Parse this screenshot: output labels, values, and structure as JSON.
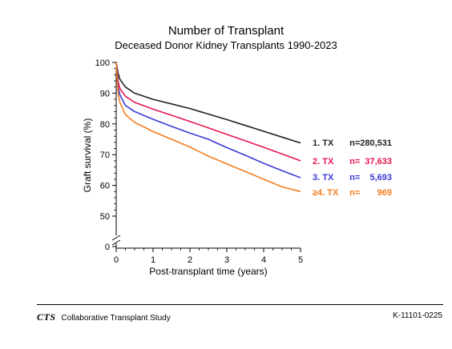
{
  "header": {
    "title": "Number of Transplant",
    "subtitle": "Deceased Donor Kidney Transplants 1990-2023"
  },
  "footer": {
    "logo": "CTS",
    "org": "Collaborative Transplant Study",
    "code": "K-11101-0225"
  },
  "chart_data": {
    "type": "line",
    "title": "Number of Transplant",
    "subtitle": "Deceased Donor Kidney Transplants 1990-2023",
    "xlabel": "Post-transplant time (years)",
    "ylabel": "Graft survival (%)",
    "xlim": [
      0,
      5
    ],
    "ylim": [
      40,
      100
    ],
    "y_axis_break": true,
    "x_ticks": [
      "0",
      "1",
      "2",
      "3",
      "4",
      "5"
    ],
    "y_ticks": [
      "0",
      "50",
      "60",
      "70",
      "80",
      "90",
      "100"
    ],
    "legend_position": "right",
    "series": [
      {
        "name": "1. TX",
        "n_label": "n=280,531",
        "color": "#222222",
        "x": [
          0,
          0.05,
          0.1,
          0.25,
          0.5,
          1,
          1.5,
          2,
          2.5,
          3,
          3.5,
          4,
          4.5,
          5
        ],
        "y": [
          100,
          96.5,
          94.5,
          92,
          90,
          88,
          86.5,
          85,
          83.2,
          81.4,
          79.5,
          77.6,
          75.7,
          73.8
        ]
      },
      {
        "name": "2. TX",
        "n_label": "n=  37,633",
        "color": "#e8174f",
        "x": [
          0,
          0.05,
          0.1,
          0.25,
          0.5,
          1,
          1.5,
          2,
          2.5,
          3,
          3.5,
          4,
          4.5,
          5
        ],
        "y": [
          100,
          94,
          91.5,
          89,
          87,
          84.8,
          82.8,
          80.8,
          78.7,
          76.6,
          74.5,
          72.4,
          70.2,
          68
        ]
      },
      {
        "name": "3. TX",
        "n_label": "n=    5,693",
        "color": "#3a3ad8",
        "x": [
          0,
          0.05,
          0.1,
          0.25,
          0.5,
          1,
          1.5,
          2,
          2.5,
          3,
          3.5,
          4,
          4.5,
          5
        ],
        "y": [
          100,
          92,
          89.5,
          86,
          84,
          81.5,
          79.2,
          77,
          75,
          72.3,
          69.8,
          67.2,
          64.8,
          62.5
        ]
      },
      {
        "name": "≥4. TX",
        "n_label": "n=       969",
        "color": "#f57d1f",
        "x": [
          0,
          0.05,
          0.1,
          0.25,
          0.5,
          1,
          1.5,
          2,
          2.5,
          3,
          3.5,
          4,
          4.5,
          5
        ],
        "y": [
          100,
          90,
          87,
          83,
          80.5,
          77.5,
          75,
          72.5,
          69.5,
          67,
          64.5,
          62,
          59.5,
          58
        ]
      }
    ]
  }
}
